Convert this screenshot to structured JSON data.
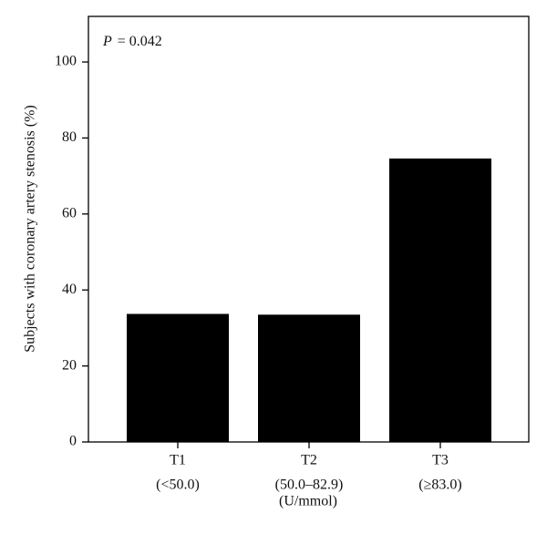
{
  "chart_data": {
    "type": "bar",
    "annotation": [
      "P",
      "= 0.042"
    ],
    "categories": [
      [
        "T1",
        "(<50.0)"
      ],
      [
        "T2",
        "(50.0–82.9)"
      ],
      [
        "T3",
        "(≥83.0)"
      ]
    ],
    "values": [
      33.7,
      33.5,
      74.6
    ],
    "color": "#000000",
    "x_label": "(U/mmol)",
    "y_label": "Subjects with coronary artery stenosis (%)",
    "ylim": [
      0,
      112
    ],
    "yticks": [
      0,
      20,
      40,
      60,
      80,
      100
    ],
    "grid": false
  }
}
